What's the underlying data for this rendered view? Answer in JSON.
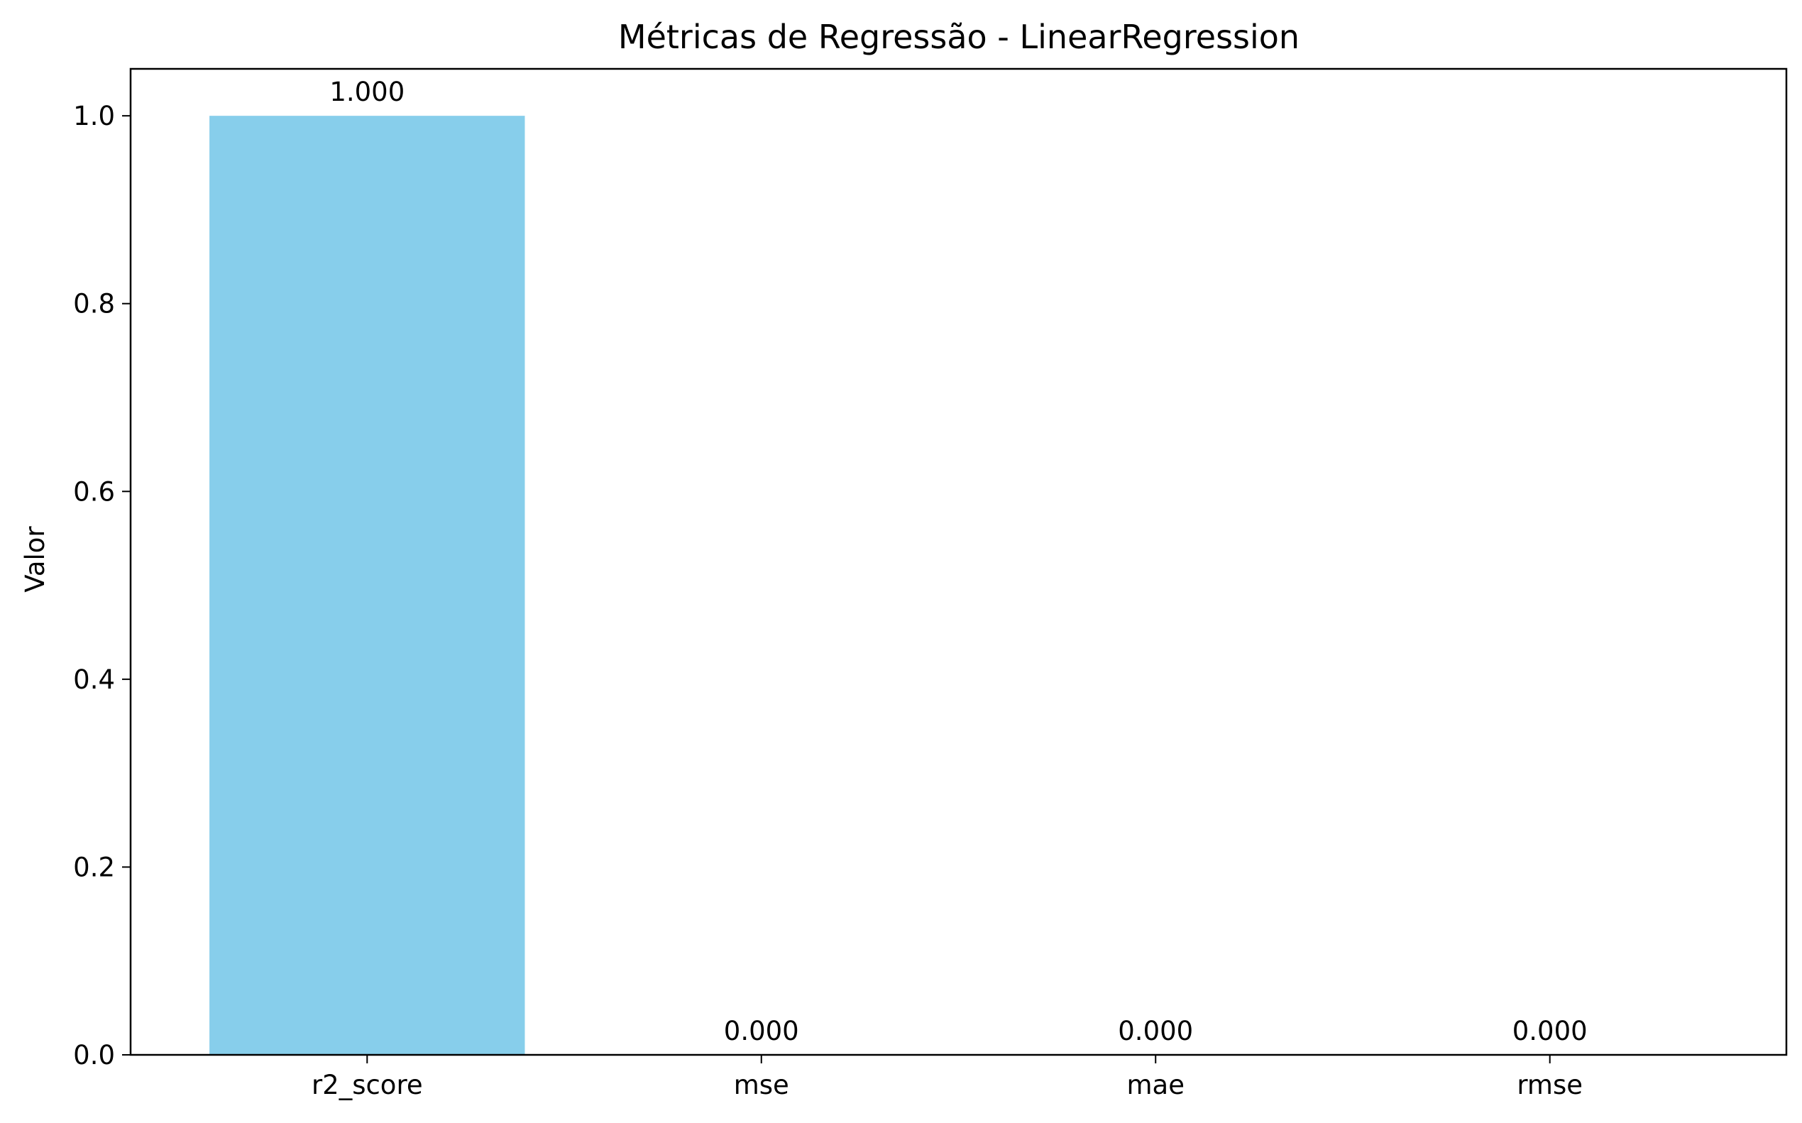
{
  "chart_data": {
    "type": "bar",
    "title": "Métricas de Regressão - LinearRegression",
    "xlabel": "",
    "ylabel": "Valor",
    "categories": [
      "r2_score",
      "mse",
      "mae",
      "rmse"
    ],
    "values": [
      1.0,
      0.0,
      0.0,
      0.0
    ],
    "data_labels": [
      "1.000",
      "0.000",
      "0.000",
      "0.000"
    ],
    "ylim": [
      0,
      1.05
    ],
    "yticks": [
      0.0,
      0.2,
      0.4,
      0.6,
      0.8,
      1.0
    ],
    "ytick_labels": [
      "0.0",
      "0.2",
      "0.4",
      "0.6",
      "0.8",
      "1.0"
    ],
    "bar_color": "#87CEEB",
    "grid": false,
    "legend": "none"
  }
}
